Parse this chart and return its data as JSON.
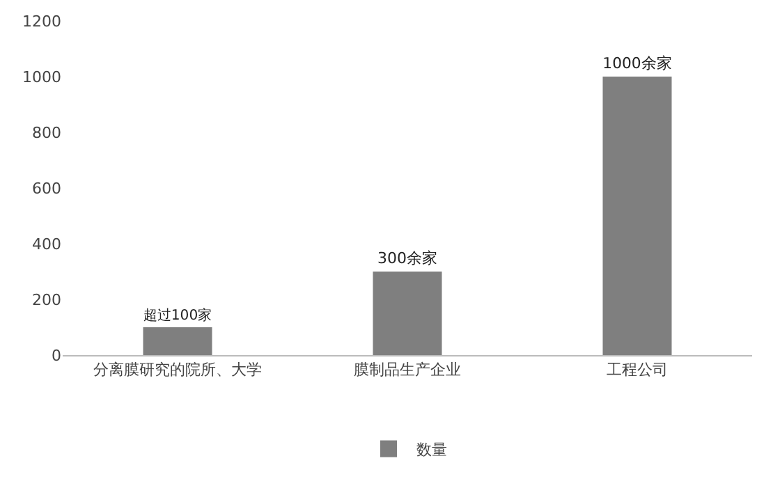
{
  "chart_data": {
    "type": "bar",
    "categories": [
      "分离膜研究的院所、大学",
      "膜制品生产企业",
      "工程公司"
    ],
    "series": [
      {
        "name": "数量",
        "color": "#7f7f7f",
        "values": [
          100,
          300,
          1000
        ]
      }
    ],
    "value_labels": [
      "超过100家",
      "300余家",
      "1000余家"
    ],
    "ylim": [
      0,
      1200
    ],
    "yticks": [
      0,
      200,
      400,
      600,
      800,
      1000,
      1200
    ],
    "grid": false,
    "legend": "bottom"
  }
}
